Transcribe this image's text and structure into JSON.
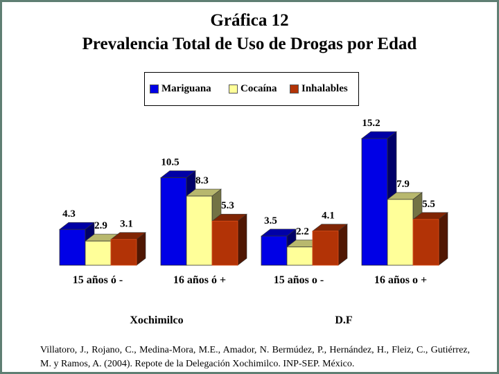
{
  "chart_data": {
    "type": "bar",
    "title": "Gráfica 12",
    "subtitle": "Prevalencia Total de Uso de Drogas por Edad",
    "categories": [
      "15 años ó -",
      "16 años ó +",
      "15 años o -",
      "16 años o +"
    ],
    "groups": [
      {
        "label": "Xochimilco",
        "categories": [
          "15 años ó -",
          "16 años ó +"
        ]
      },
      {
        "label": "D.F",
        "categories": [
          "15 años o -",
          "16 años o +"
        ]
      }
    ],
    "series": [
      {
        "name": "Mariguana",
        "color": "#0000e6",
        "values": [
          4.3,
          10.5,
          3.5,
          15.2
        ]
      },
      {
        "name": "Cocaína",
        "color": "#ffff99",
        "values": [
          2.9,
          8.3,
          2.2,
          7.9
        ]
      },
      {
        "name": "Inhalables",
        "color": "#b23306",
        "values": [
          3.1,
          5.3,
          4.1,
          5.5
        ]
      }
    ],
    "value_labels": [
      [
        "4.3",
        "10.5",
        "3.5",
        "15.2"
      ],
      [
        "2.9",
        "8.3",
        "2.2",
        "7.9"
      ],
      [
        "3.1",
        "5.3",
        "4.1",
        "5.5"
      ]
    ],
    "ylim": [
      0,
      15.2
    ],
    "grid": false,
    "legend_position": "top-center",
    "style": "3d"
  },
  "source": "Villatoro, J., Rojano, C., Medina-Mora, M.E., Amador, N. Bermúdez, P., Hernández, H., Fleiz, C., Gutiérrez, M. y Ramos, A. (2004). Repote de la Delegación Xochimilco. INP-SEP. México."
}
